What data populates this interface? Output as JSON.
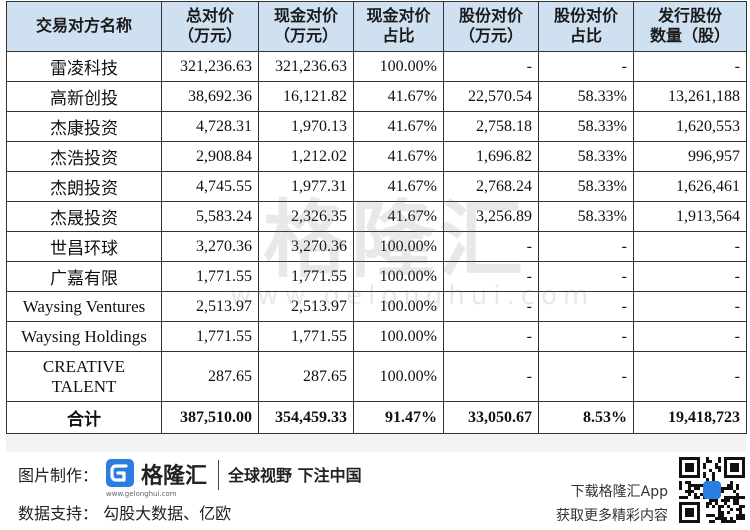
{
  "table": {
    "headers": [
      [
        "交易对方名称"
      ],
      [
        "总对价",
        "（万元）"
      ],
      [
        "现金对价",
        "（万元）"
      ],
      [
        "现金对价",
        "占比"
      ],
      [
        "股份对价",
        "（万元）"
      ],
      [
        "股份对价",
        "占比"
      ],
      [
        "发行股份",
        "数量（股）"
      ]
    ],
    "rows": [
      [
        "雷凌科技",
        "321,236.63",
        "321,236.63",
        "100.00%",
        "-",
        "-",
        "-"
      ],
      [
        "高新创投",
        "38,692.36",
        "16,121.82",
        "41.67%",
        "22,570.54",
        "58.33%",
        "13,261,188"
      ],
      [
        "杰康投资",
        "4,728.31",
        "1,970.13",
        "41.67%",
        "2,758.18",
        "58.33%",
        "1,620,553"
      ],
      [
        "杰浩投资",
        "2,908.84",
        "1,212.02",
        "41.67%",
        "1,696.82",
        "58.33%",
        "996,957"
      ],
      [
        "杰朗投资",
        "4,745.55",
        "1,977.31",
        "41.67%",
        "2,768.24",
        "58.33%",
        "1,626,461"
      ],
      [
        "杰晟投资",
        "5,583.24",
        "2,326.35",
        "41.67%",
        "3,256.89",
        "58.33%",
        "1,913,564"
      ],
      [
        "世昌环球",
        "3,270.36",
        "3,270.36",
        "100.00%",
        "-",
        "-",
        "-"
      ],
      [
        "广嘉有限",
        "1,771.55",
        "1,771.55",
        "100.00%",
        "-",
        "-",
        "-"
      ],
      [
        "Waysing Ventures",
        "2,513.97",
        "2,513.97",
        "100.00%",
        "-",
        "-",
        "-"
      ],
      [
        "Waysing Holdings",
        "1,771.55",
        "1,771.55",
        "100.00%",
        "-",
        "-",
        "-"
      ],
      [
        "CREATIVE\nTALENT",
        "287.65",
        "287.65",
        "100.00%",
        "-",
        "-",
        "-"
      ]
    ],
    "total": [
      "合计",
      "387,510.00",
      "354,459.33",
      "91.47%",
      "33,050.67",
      "8.53%",
      "19,418,723"
    ]
  },
  "watermark": {
    "brand": "格隆汇",
    "url": "www.gelonghui.com"
  },
  "footer": {
    "credit_label": "图片制作：",
    "brand_name": "格隆汇",
    "brand_url": "www.gelonghui.com",
    "slogan": "全球视野 下注中国",
    "source": "数据支持： 勾股大数据、亿欧",
    "download_line1": "下载格隆汇App",
    "download_line2": "获取更多精彩内容"
  },
  "colors": {
    "header_bg": "#cfe0f0",
    "logo_blue": "#2a7de1"
  }
}
